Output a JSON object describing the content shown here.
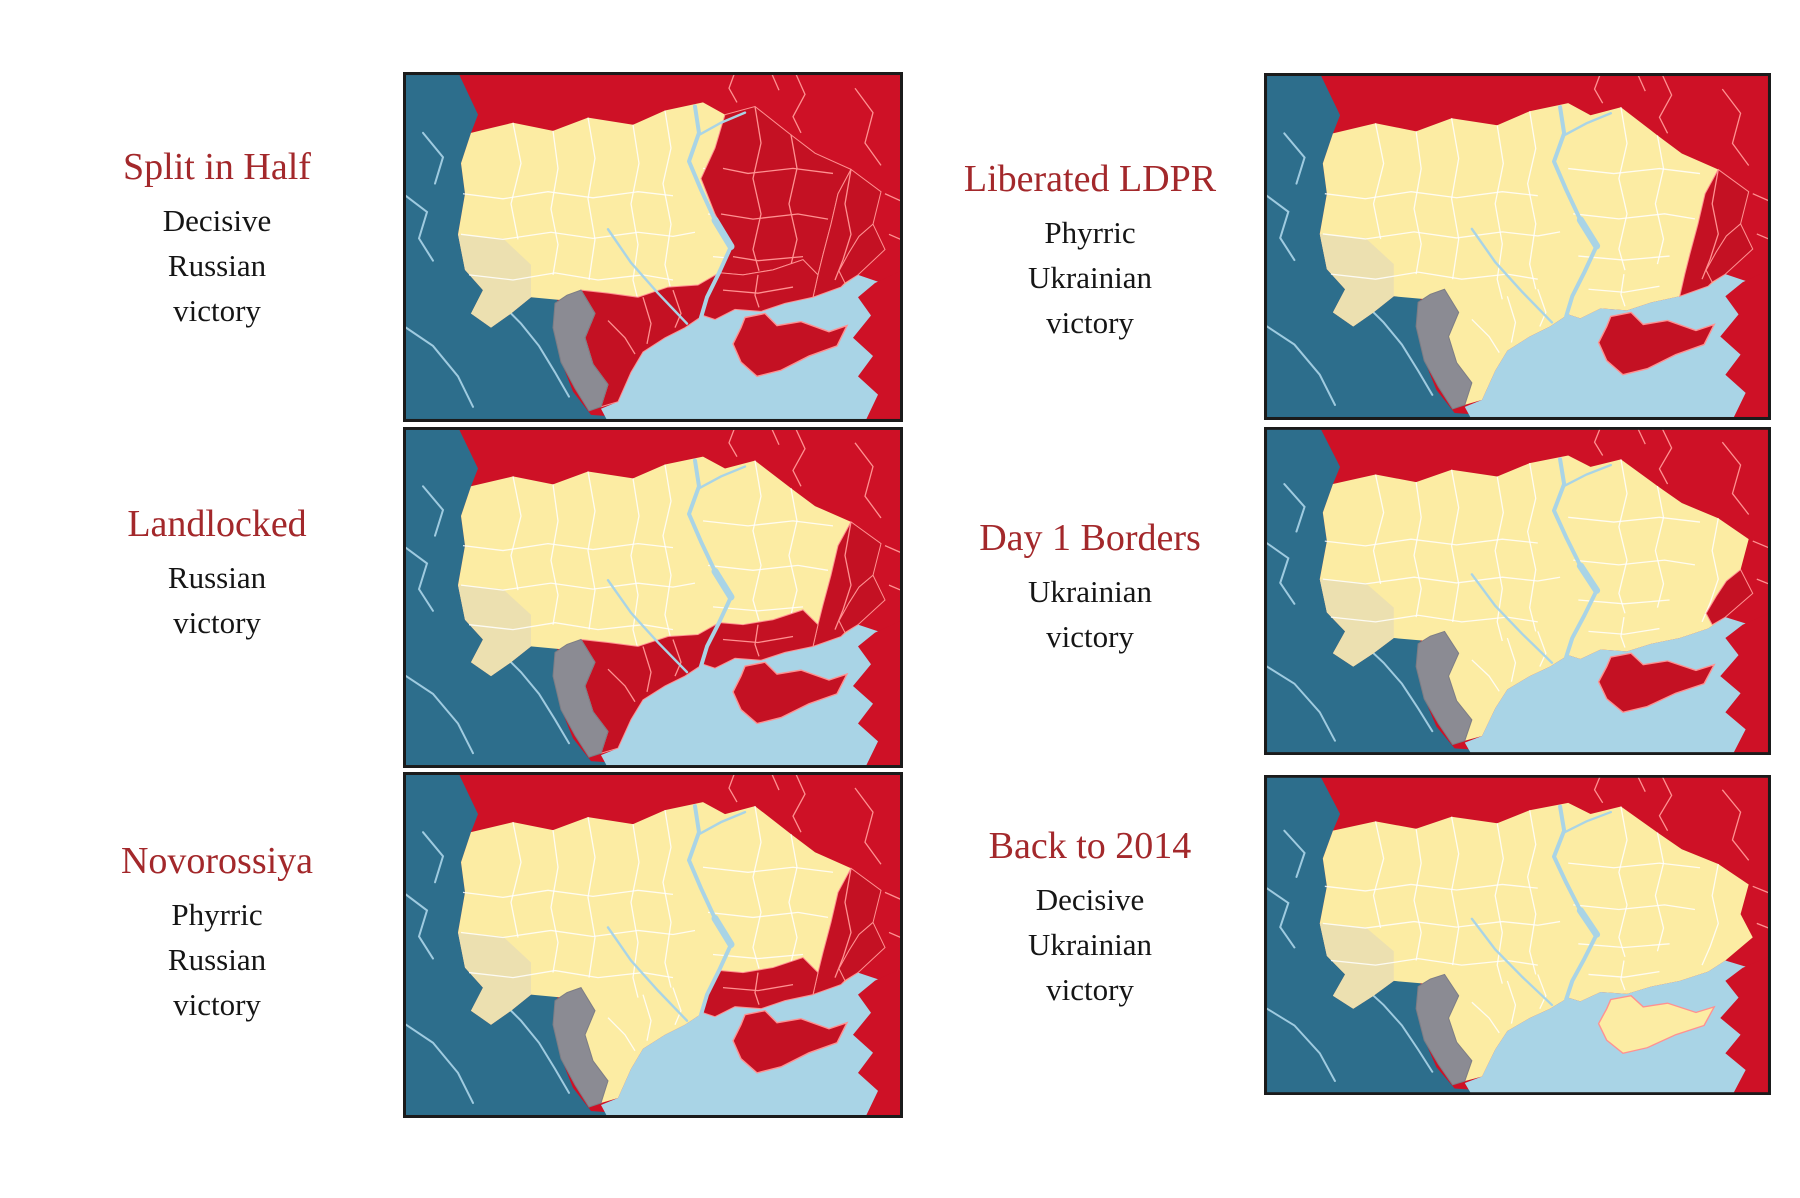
{
  "page": {
    "background": "#ffffff"
  },
  "colors": {
    "ukraine_controlled": "#fceca3",
    "ukraine_west_shade": "#ece0b0",
    "russian_controlled": "#c41123",
    "russia_background": "#ce1126",
    "western_countries": "#2d6e8c",
    "sea": "#a9d4e6",
    "teal_river": "#9fcbe0",
    "moldova": "#8b8b93",
    "moldova_edge": "#7d7d85",
    "oblast_border_free": "#ffffff",
    "oblast_border_occupied": "#ff9191",
    "title_red": "#a3282b",
    "result_text": "#151515",
    "frame": "#1b1b1b"
  },
  "scenarios": [
    {
      "id": "split-in-half",
      "title": "Split in Half",
      "result_lines": [
        "Decisive",
        "Russian",
        "victory"
      ],
      "russian_zones": [
        "center",
        "east",
        "sliver",
        "south",
        "odesa",
        "crimea"
      ]
    },
    {
      "id": "liberated-ldpr",
      "title": "Liberated LDPR",
      "result_lines": [
        "Phyrric",
        "Ukrainian",
        "victory"
      ],
      "russian_zones": [
        "east",
        "sliver",
        "crimea"
      ]
    },
    {
      "id": "landlocked",
      "title": "Landlocked",
      "result_lines": [
        "Russian",
        "victory"
      ],
      "russian_zones": [
        "east",
        "sliver",
        "south",
        "odesa",
        "crimea"
      ]
    },
    {
      "id": "day-1-borders",
      "title": "Day 1 Borders",
      "result_lines": [
        "Ukrainian",
        "victory"
      ],
      "russian_zones": [
        "sliver",
        "crimea"
      ]
    },
    {
      "id": "novorossiya",
      "title": "Novorossiya",
      "result_lines": [
        "Phyrric",
        "Russian",
        "victory"
      ],
      "russian_zones": [
        "east",
        "sliver",
        "south",
        "crimea"
      ]
    },
    {
      "id": "back-to-2014",
      "title": "Back to 2014",
      "result_lines": [
        "Decisive",
        "Ukrainian",
        "victory"
      ],
      "russian_zones": []
    }
  ]
}
